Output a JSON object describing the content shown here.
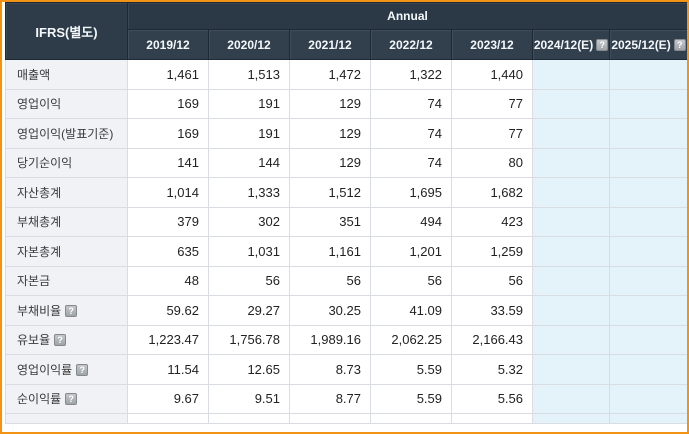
{
  "colors": {
    "frame_border": "#f39315",
    "header_background": "#2e3c4a",
    "header_text": "#f4f7fa",
    "label_cell_background": "#f0f2f6",
    "estimate_column_background": "#e4f2f9",
    "grid_line": "#d9dde2"
  },
  "table": {
    "corner_label": "IFRS(별도)",
    "group_header": "Annual",
    "help_icon_glyph": "?",
    "columns": [
      {
        "label": "2019/12",
        "estimate": false
      },
      {
        "label": "2020/12",
        "estimate": false
      },
      {
        "label": "2021/12",
        "estimate": false
      },
      {
        "label": "2022/12",
        "estimate": false
      },
      {
        "label": "2023/12",
        "estimate": false
      },
      {
        "label": "2024/12(E)",
        "estimate": true
      },
      {
        "label": "2025/12(E)",
        "estimate": true
      }
    ],
    "rows": [
      {
        "label": "매출액",
        "help": false,
        "values": [
          "1,461",
          "1,513",
          "1,472",
          "1,322",
          "1,440",
          "",
          ""
        ]
      },
      {
        "label": "영업이익",
        "help": false,
        "values": [
          "169",
          "191",
          "129",
          "74",
          "77",
          "",
          ""
        ]
      },
      {
        "label": "영업이익(발표기준)",
        "help": false,
        "values": [
          "169",
          "191",
          "129",
          "74",
          "77",
          "",
          ""
        ]
      },
      {
        "label": "당기순이익",
        "help": false,
        "values": [
          "141",
          "144",
          "129",
          "74",
          "80",
          "",
          ""
        ]
      },
      {
        "label": "자산총계",
        "help": false,
        "values": [
          "1,014",
          "1,333",
          "1,512",
          "1,695",
          "1,682",
          "",
          ""
        ]
      },
      {
        "label": "부채총계",
        "help": false,
        "values": [
          "379",
          "302",
          "351",
          "494",
          "423",
          "",
          ""
        ]
      },
      {
        "label": "자본총계",
        "help": false,
        "values": [
          "635",
          "1,031",
          "1,161",
          "1,201",
          "1,259",
          "",
          ""
        ]
      },
      {
        "label": "자본금",
        "help": false,
        "values": [
          "48",
          "56",
          "56",
          "56",
          "56",
          "",
          ""
        ]
      },
      {
        "label": "부채비율",
        "help": true,
        "values": [
          "59.62",
          "29.27",
          "30.25",
          "41.09",
          "33.59",
          "",
          ""
        ]
      },
      {
        "label": "유보율",
        "help": true,
        "values": [
          "1,223.47",
          "1,756.78",
          "1,989.16",
          "2,062.25",
          "2,166.43",
          "",
          ""
        ]
      },
      {
        "label": "영업이익률",
        "help": true,
        "values": [
          "11.54",
          "12.65",
          "8.73",
          "5.59",
          "5.32",
          "",
          ""
        ]
      },
      {
        "label": "순이익률",
        "help": true,
        "values": [
          "9.67",
          "9.51",
          "8.77",
          "5.59",
          "5.56",
          "",
          ""
        ]
      },
      {
        "label": "",
        "help": false,
        "partial": true,
        "values": [
          "",
          "",
          "",
          "",
          "",
          "",
          ""
        ]
      }
    ]
  }
}
